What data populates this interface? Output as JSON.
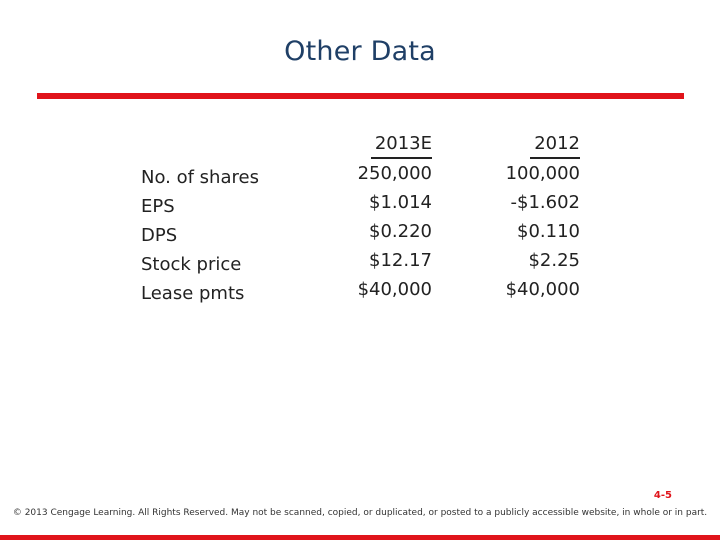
{
  "title": "Other Data",
  "rows": [
    "No. of shares",
    "EPS",
    "DPS",
    "Stock price",
    "Lease pmts"
  ],
  "columns": [
    {
      "header": "2013E",
      "values": [
        "250,000",
        "$1.014",
        "$0.220",
        "$12.17",
        "$40,000"
      ]
    },
    {
      "header": "2012",
      "values": [
        "100,000",
        "-$1.602",
        "$0.110",
        "$2.25",
        "$40,000"
      ]
    }
  ],
  "page_number": "4-5",
  "footer": "© 2013 Cengage Learning. All Rights Reserved. May not be scanned, copied, or duplicated, or posted to a publicly accessible website, in whole or in part.",
  "colors": {
    "accent": "#e0141b",
    "title": "#1f3f66"
  }
}
